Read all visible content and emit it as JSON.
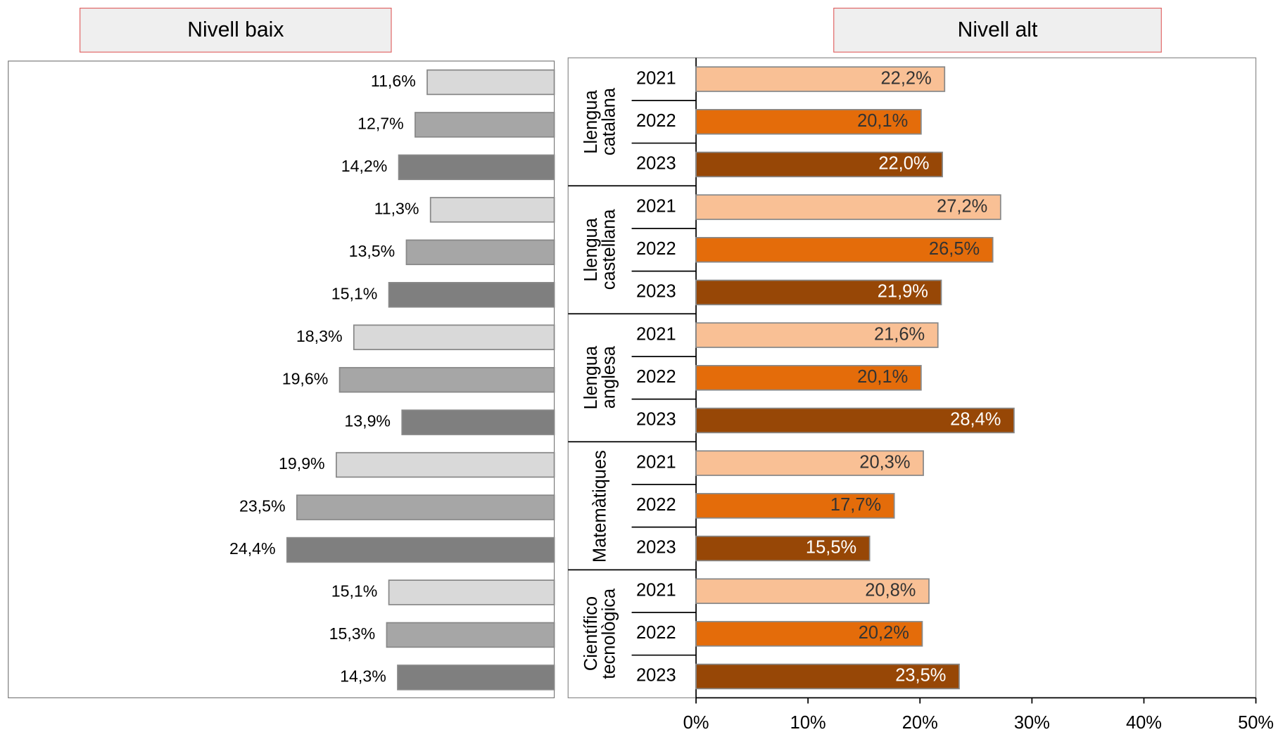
{
  "chart_data": [
    {
      "type": "bar",
      "title": "Nivell baix",
      "categories": [
        "Llengua catalana",
        "Llengua castellana",
        "Llengua anglesa",
        "Matemàtiques",
        "Científico tecnològica"
      ],
      "series": [
        {
          "color": "#d9d9d9",
          "values": [
            11.6,
            11.3,
            18.3,
            19.9,
            15.1
          ],
          "value_labels": [
            "11,6%",
            "11,3%",
            "18,3%",
            "19,9%",
            "15,1%"
          ]
        },
        {
          "color": "#a6a6a6",
          "values": [
            12.7,
            13.5,
            19.6,
            23.5,
            15.3
          ],
          "value_labels": [
            "12,7%",
            "13,5%",
            "19,6%",
            "23,5%",
            "15,3%"
          ]
        },
        {
          "color": "#7f7f7f",
          "values": [
            14.2,
            15.1,
            13.9,
            24.4,
            14.3
          ],
          "value_labels": [
            "14,2%",
            "15,1%",
            "13,9%",
            "24,4%",
            "14,3%"
          ]
        }
      ]
    },
    {
      "type": "bar",
      "title": "Nivell alt",
      "categories": [
        "Llengua catalana",
        "Llengua castellana",
        "Llengua anglesa",
        "Matemàtiques",
        "Científico tecnològica"
      ],
      "series": [
        {
          "name": "2021",
          "color": "#f9c095",
          "values": [
            22.2,
            27.2,
            21.6,
            20.3,
            20.8
          ],
          "value_labels": [
            "22,2%",
            "27,2%",
            "21,6%",
            "20,3%",
            "20,8%"
          ]
        },
        {
          "name": "2022",
          "color": "#e46c0a",
          "values": [
            20.1,
            26.5,
            20.1,
            17.7,
            20.2
          ],
          "value_labels": [
            "20,1%",
            "26,5%",
            "20,1%",
            "17,7%",
            "20,2%"
          ]
        },
        {
          "name": "2023",
          "color": "#974706",
          "values": [
            22.0,
            21.9,
            28.4,
            15.5,
            23.5
          ],
          "value_labels": [
            "22,0%",
            "21,9%",
            "28,4%",
            "15,5%",
            "23,5%"
          ]
        }
      ],
      "xlim": [
        0,
        50
      ],
      "xticks": [
        {
          "value": 0,
          "label": "0%"
        },
        {
          "value": 10,
          "label": "10%"
        },
        {
          "value": 20,
          "label": "20%"
        },
        {
          "value": 30,
          "label": "30%"
        },
        {
          "value": 40,
          "label": "40%"
        },
        {
          "value": 50,
          "label": "50%"
        }
      ]
    }
  ]
}
